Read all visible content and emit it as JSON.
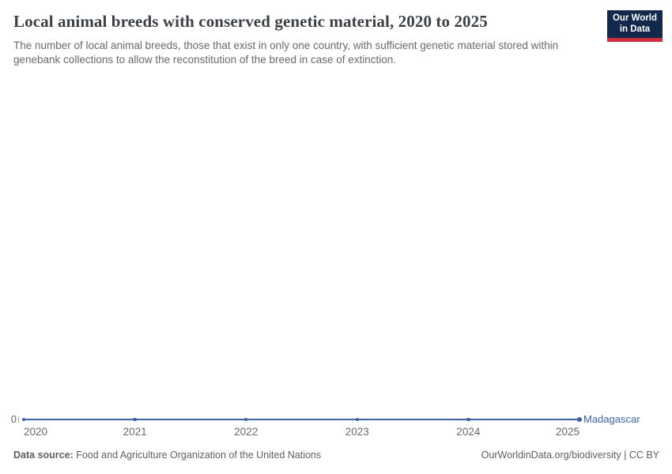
{
  "chart_data": {
    "type": "line",
    "title": "Local animal breeds with conserved genetic material, 2020 to 2025",
    "subtitle": "The number of local animal breeds, those that exist in only one country, with sufficient genetic material stored within genebank collections to allow the reconstitution of the breed in case of extinction.",
    "x": [
      2020,
      2021,
      2022,
      2023,
      2024,
      2025
    ],
    "series": [
      {
        "name": "Madagascar",
        "values": [
          0,
          0,
          0,
          0,
          0,
          0
        ],
        "color": "#3e61a9"
      }
    ],
    "xlabel": "",
    "ylabel": "",
    "y_ticks": [
      0
    ],
    "y_zero_label": "0",
    "ylim": [
      0,
      0
    ],
    "grid": false,
    "legend_position": "right-of-line-end"
  },
  "branding": {
    "logo_line1": "Our World",
    "logo_line2": "in Data",
    "logo_bg_color": "#12294d",
    "logo_accent_color": "#c7303c"
  },
  "footer": {
    "source_label": "Data source:",
    "source_text": "Food and Agriculture Organization of the United Nations",
    "credit": "OurWorldinData.org/biodiversity | CC BY"
  }
}
